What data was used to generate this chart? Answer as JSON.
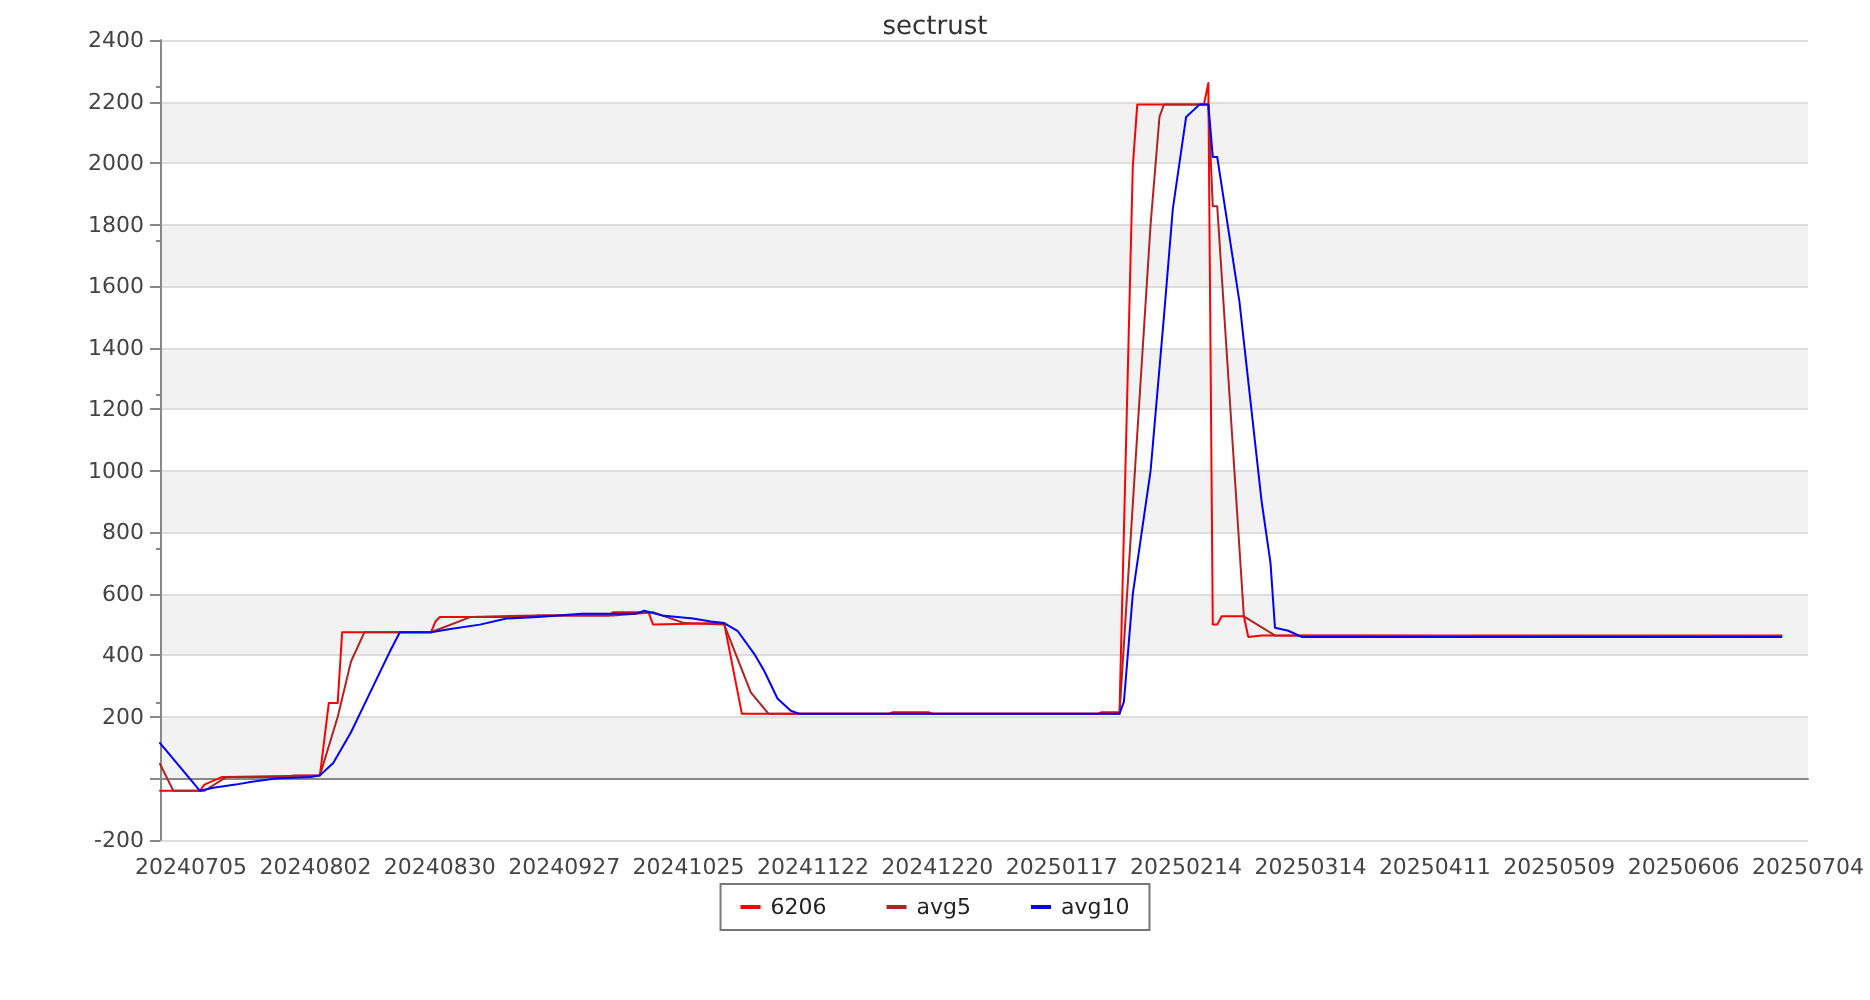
{
  "chart_data": {
    "type": "line",
    "title": "sectrust",
    "legend": "bottom",
    "grid": "y",
    "marker": "none",
    "line_style": "solid",
    "xlim": [
      "2024-06-28",
      "2025-07-04"
    ],
    "xticks": [
      {
        "value": "2024-07-05",
        "label": "20240705"
      },
      {
        "value": "2024-08-02",
        "label": "20240802"
      },
      {
        "value": "2024-08-30",
        "label": "20240830"
      },
      {
        "value": "2024-09-27",
        "label": "20240927"
      },
      {
        "value": "2024-10-25",
        "label": "20241025"
      },
      {
        "value": "2024-11-22",
        "label": "20241122"
      },
      {
        "value": "2024-12-20",
        "label": "20241220"
      },
      {
        "value": "2025-01-17",
        "label": "20250117"
      },
      {
        "value": "2025-02-14",
        "label": "20250214"
      },
      {
        "value": "2025-03-14",
        "label": "20250314"
      },
      {
        "value": "2025-04-11",
        "label": "20250411"
      },
      {
        "value": "2025-05-09",
        "label": "20250509"
      },
      {
        "value": "2025-06-06",
        "label": "20250606"
      },
      {
        "value": "2025-07-04",
        "label": "20250704"
      }
    ],
    "ylim": [
      -200,
      2400
    ],
    "yticks": [
      -200,
      {
        "value": 0,
        "label": null
      },
      200,
      400,
      600,
      800,
      1000,
      1200,
      1400,
      1600,
      1800,
      2000,
      2200,
      2400
    ],
    "series": [
      {
        "name": "6206",
        "color": "#ff0000",
        "x": [
          "2024-06-28",
          "2024-07-07",
          "2024-07-08",
          "2024-07-12",
          "2024-07-27",
          "2024-07-28",
          "2024-08-03",
          "2024-08-05",
          "2024-08-07",
          "2024-08-08",
          "2024-08-28",
          "2024-08-29",
          "2024-08-30",
          "2024-09-20",
          "2024-09-21",
          "2024-10-07",
          "2024-10-08",
          "2024-10-16",
          "2024-10-17",
          "2024-11-02",
          "2024-11-06",
          "2024-12-09",
          "2024-12-10",
          "2024-12-18",
          "2024-12-19",
          "2025-01-25",
          "2025-01-26",
          "2025-01-30",
          "2025-02-02",
          "2025-02-03",
          "2025-02-18",
          "2025-02-19",
          "2025-02-20",
          "2025-02-21",
          "2025-02-22",
          "2025-02-27",
          "2025-02-28",
          "2025-03-03",
          "2025-06-28"
        ],
        "values": [
          -40,
          -40,
          -20,
          5,
          5,
          10,
          10,
          245,
          245,
          475,
          475,
          510,
          525,
          525,
          530,
          530,
          540,
          540,
          500,
          505,
          210,
          210,
          215,
          215,
          210,
          210,
          215,
          215,
          1990,
          2190,
          2190,
          2260,
          500,
          500,
          527,
          527,
          460,
          465,
          465
        ]
      },
      {
        "name": "avg5",
        "color": "#b22222",
        "x": [
          "2024-06-28",
          "2024-07-01",
          "2024-07-08",
          "2024-07-13",
          "2024-08-03",
          "2024-08-07",
          "2024-08-10",
          "2024-08-13",
          "2024-08-28",
          "2024-09-06",
          "2024-09-21",
          "2024-10-08",
          "2024-10-17",
          "2024-10-24",
          "2024-11-02",
          "2024-11-08",
          "2024-11-12",
          "2025-01-30",
          "2025-02-06",
          "2025-02-08",
          "2025-02-09",
          "2025-02-19",
          "2025-02-20",
          "2025-02-21",
          "2025-02-27",
          "2025-03-06",
          "2025-06-28"
        ],
        "values": [
          47,
          -40,
          -40,
          5,
          10,
          200,
          380,
          475,
          475,
          525,
          530,
          530,
          540,
          505,
          500,
          280,
          210,
          210,
          1800,
          2150,
          2190,
          2190,
          1860,
          1860,
          527,
          465,
          460
        ]
      },
      {
        "name": "avg10",
        "color": "#0000ff",
        "x": [
          "2024-06-28",
          "2024-07-07",
          "2024-07-10",
          "2024-07-15",
          "2024-07-19",
          "2024-07-24",
          "2024-08-01",
          "2024-08-03",
          "2024-08-06",
          "2024-08-10",
          "2024-08-15",
          "2024-08-19",
          "2024-08-21",
          "2024-08-28",
          "2024-09-01",
          "2024-09-08",
          "2024-09-14",
          "2024-09-21",
          "2024-10-01",
          "2024-10-13",
          "2024-10-15",
          "2024-10-19",
          "2024-10-26",
          "2024-10-30",
          "2024-11-02",
          "2024-11-05",
          "2024-11-09",
          "2024-11-11",
          "2024-11-14",
          "2024-11-17",
          "2024-11-19",
          "2025-01-30",
          "2025-01-31",
          "2025-02-02",
          "2025-02-06",
          "2025-02-09",
          "2025-02-11",
          "2025-02-14",
          "2025-02-17",
          "2025-02-19",
          "2025-02-20",
          "2025-02-21",
          "2025-02-26",
          "2025-03-03",
          "2025-03-05",
          "2025-03-06",
          "2025-03-09",
          "2025-03-12",
          "2025-06-28"
        ],
        "values": [
          115,
          -40,
          -30,
          -20,
          -10,
          0,
          5,
          10,
          50,
          150,
          300,
          420,
          475,
          475,
          485,
          500,
          520,
          525,
          535,
          535,
          545,
          530,
          520,
          510,
          505,
          480,
          400,
          350,
          260,
          220,
          210,
          210,
          250,
          600,
          1000,
          1500,
          1850,
          2150,
          2190,
          2190,
          2020,
          2020,
          1550,
          900,
          700,
          490,
          480,
          460,
          460
        ]
      }
    ]
  }
}
